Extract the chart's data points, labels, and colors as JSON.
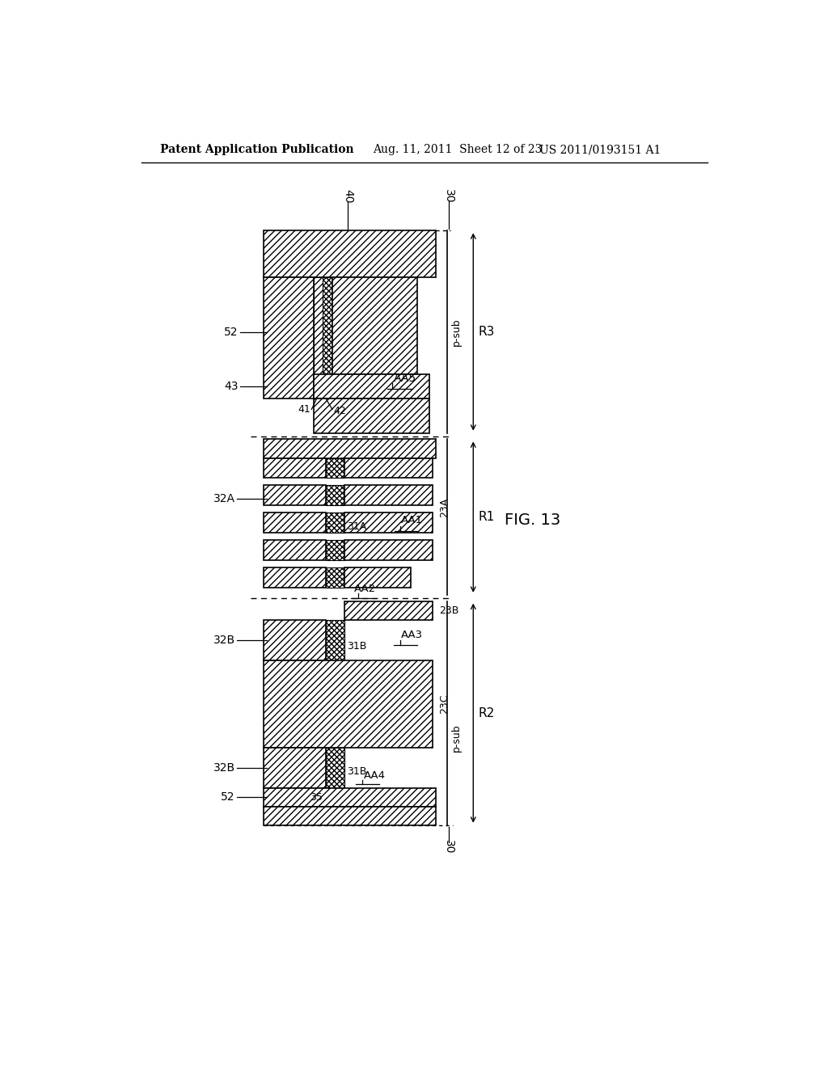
{
  "header_left": "Patent Application Publication",
  "header_mid": "Aug. 11, 2011  Sheet 12 of 23",
  "header_right": "US 2011/0193151 A1",
  "fig_label": "FIG. 13",
  "bg_color": "#ffffff"
}
